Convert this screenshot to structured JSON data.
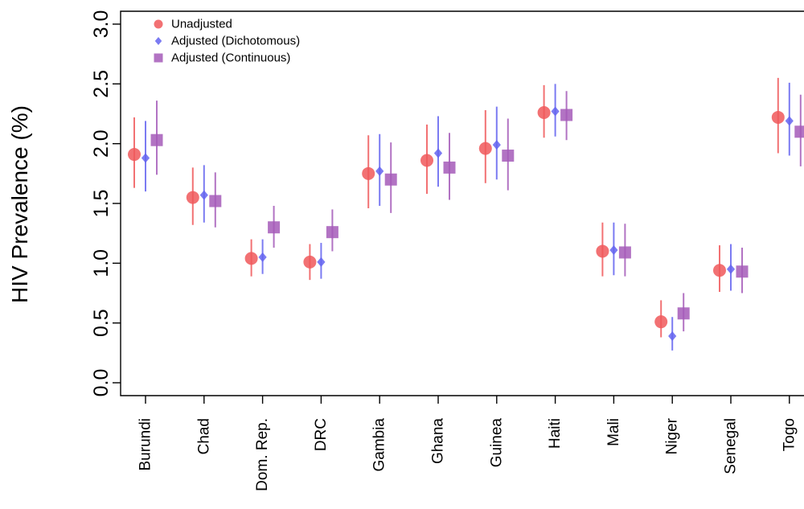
{
  "chart_data": {
    "type": "scatter",
    "title": "",
    "xlabel": "",
    "ylabel": "HIV Prevalence (%)",
    "ylim": [
      0.0,
      3.0
    ],
    "yticks": [
      "0.0",
      "0.5",
      "1.0",
      "1.5",
      "2.0",
      "2.5",
      "3.0"
    ],
    "grid": false,
    "legend_position": "top-left",
    "categories": [
      "Burundi",
      "Chad",
      "Dom. Rep.",
      "DRC",
      "Gambia",
      "Ghana",
      "Guinea",
      "Haiti",
      "Mali",
      "Niger",
      "Senegal",
      "Togo"
    ],
    "series": [
      {
        "name": "Unadjusted",
        "marker": "circle",
        "color": "#f0585a",
        "values": [
          1.91,
          1.55,
          1.04,
          1.01,
          1.75,
          1.86,
          1.96,
          2.26,
          1.1,
          0.51,
          0.94,
          2.22
        ],
        "lower": [
          1.63,
          1.32,
          0.89,
          0.86,
          1.46,
          1.58,
          1.67,
          2.05,
          0.89,
          0.38,
          0.76,
          1.92
        ],
        "upper": [
          2.22,
          1.8,
          1.2,
          1.16,
          2.07,
          2.16,
          2.28,
          2.49,
          1.34,
          0.69,
          1.15,
          2.55
        ]
      },
      {
        "name": "Adjusted (Dichotomous)",
        "marker": "diamond",
        "color": "#6464f0",
        "values": [
          1.88,
          1.57,
          1.05,
          1.01,
          1.77,
          1.92,
          1.99,
          2.27,
          1.11,
          0.39,
          0.95,
          2.19
        ],
        "lower": [
          1.6,
          1.34,
          0.91,
          0.87,
          1.48,
          1.64,
          1.7,
          2.06,
          0.9,
          0.27,
          0.77,
          1.9
        ],
        "upper": [
          2.19,
          1.82,
          1.2,
          1.17,
          2.08,
          2.23,
          2.31,
          2.5,
          1.34,
          0.55,
          1.16,
          2.51
        ]
      },
      {
        "name": "Adjusted (Continuous)",
        "marker": "square",
        "color": "#a55ab9",
        "values": [
          2.03,
          1.52,
          1.3,
          1.26,
          1.7,
          1.8,
          1.9,
          2.24,
          1.09,
          0.58,
          0.93,
          2.1
        ],
        "lower": [
          1.74,
          1.3,
          1.13,
          1.1,
          1.42,
          1.53,
          1.61,
          2.03,
          0.89,
          0.43,
          0.75,
          1.81
        ],
        "upper": [
          2.36,
          1.76,
          1.48,
          1.45,
          2.01,
          2.09,
          2.21,
          2.44,
          1.33,
          0.75,
          1.13,
          2.41
        ]
      }
    ]
  }
}
